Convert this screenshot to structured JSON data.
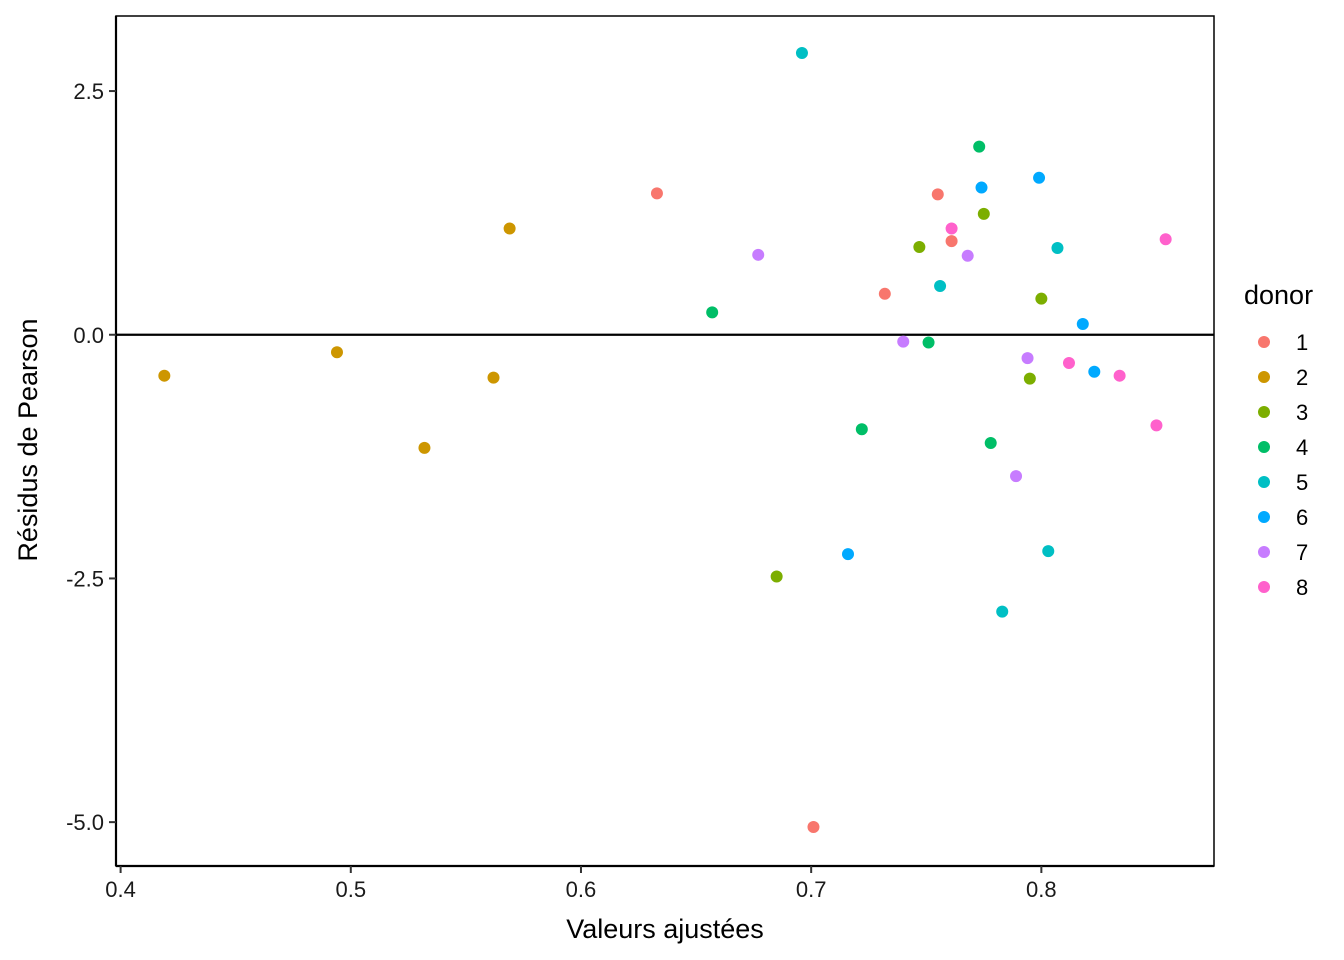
{
  "chart_data": {
    "type": "scatter",
    "title": "",
    "xlabel": "Valeurs ajustées",
    "ylabel": "Résidus de Pearson",
    "xlim": [
      0.398,
      0.875
    ],
    "ylim": [
      -5.45,
      3.27
    ],
    "x_ticks": [
      "0.4",
      "0.5",
      "0.6",
      "0.7",
      "0.8"
    ],
    "x_tick_values": [
      0.4,
      0.5,
      0.6,
      0.7,
      0.8
    ],
    "y_ticks": [
      "2.5",
      "0.0",
      "-2.5",
      "-5.0"
    ],
    "y_tick_values": [
      2.5,
      0.0,
      -2.5,
      -5.0
    ],
    "reference_line_y": 0,
    "grid": false,
    "legend": {
      "title": "donor",
      "position": "right"
    },
    "series": [
      {
        "name": "1",
        "color": "#F8766D",
        "points": [
          [
            0.633,
            1.45
          ],
          [
            0.755,
            1.44
          ],
          [
            0.761,
            0.96
          ],
          [
            0.732,
            0.42
          ],
          [
            0.701,
            -5.05
          ]
        ]
      },
      {
        "name": "2",
        "color": "#CD9600",
        "points": [
          [
            0.569,
            1.09
          ],
          [
            0.419,
            -0.42
          ],
          [
            0.494,
            -0.18
          ],
          [
            0.562,
            -0.44
          ],
          [
            0.532,
            -1.16
          ]
        ]
      },
      {
        "name": "3",
        "color": "#7CAE00",
        "points": [
          [
            0.747,
            0.9
          ],
          [
            0.775,
            1.24
          ],
          [
            0.8,
            0.37
          ],
          [
            0.795,
            -0.45
          ],
          [
            0.685,
            -2.48
          ]
        ]
      },
      {
        "name": "4",
        "color": "#00BE67",
        "points": [
          [
            0.773,
            1.93
          ],
          [
            0.657,
            0.23
          ],
          [
            0.751,
            -0.08
          ],
          [
            0.722,
            -0.97
          ],
          [
            0.778,
            -1.11
          ]
        ]
      },
      {
        "name": "5",
        "color": "#00BFC4",
        "points": [
          [
            0.696,
            2.89
          ],
          [
            0.807,
            0.89
          ],
          [
            0.756,
            0.5
          ],
          [
            0.803,
            -2.22
          ],
          [
            0.783,
            -2.84
          ]
        ]
      },
      {
        "name": "6",
        "color": "#00A9FF",
        "points": [
          [
            0.774,
            1.51
          ],
          [
            0.799,
            1.61
          ],
          [
            0.818,
            0.11
          ],
          [
            0.823,
            -0.38
          ],
          [
            0.716,
            -2.25
          ]
        ]
      },
      {
        "name": "7",
        "color": "#C77CFF",
        "points": [
          [
            0.677,
            0.82
          ],
          [
            0.768,
            0.81
          ],
          [
            0.74,
            -0.07
          ],
          [
            0.794,
            -0.24
          ],
          [
            0.789,
            -1.45
          ]
        ]
      },
      {
        "name": "8",
        "color": "#FF61CC",
        "points": [
          [
            0.761,
            1.09
          ],
          [
            0.854,
            0.98
          ],
          [
            0.812,
            -0.29
          ],
          [
            0.834,
            -0.42
          ],
          [
            0.85,
            -0.93
          ]
        ]
      }
    ]
  }
}
